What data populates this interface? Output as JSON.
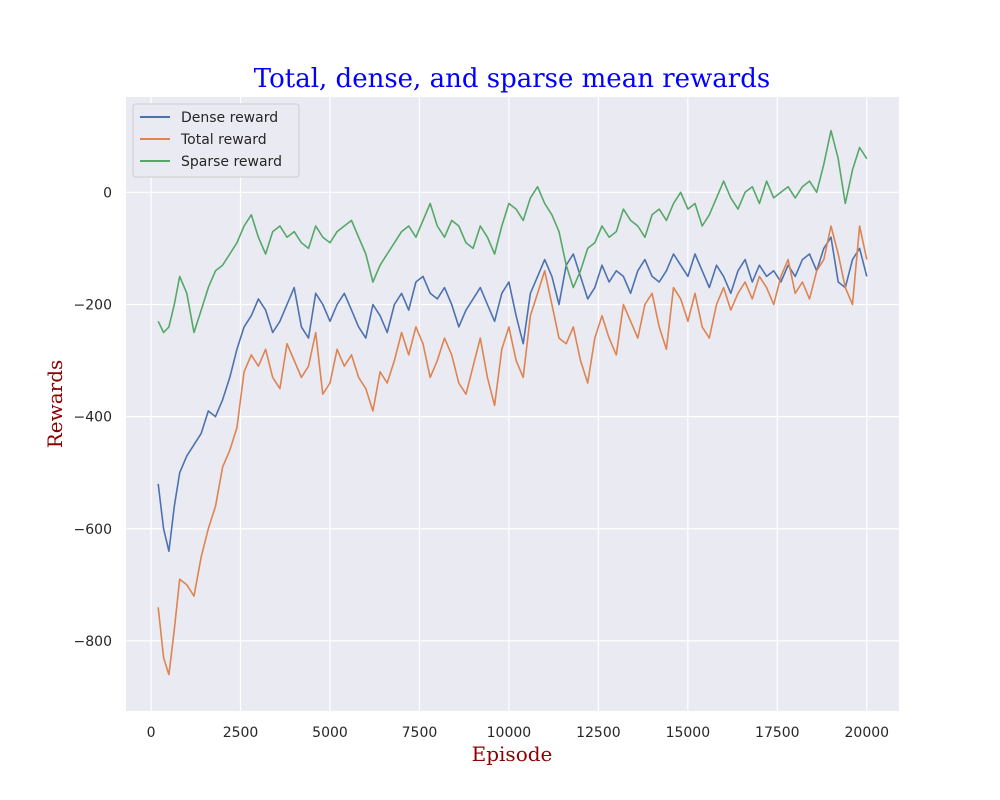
{
  "chart_data": {
    "type": "line",
    "title": "Total, dense, and sparse mean rewards",
    "xlabel": "Episode",
    "ylabel": "Rewards",
    "xlim": [
      -700,
      20900
    ],
    "ylim": [
      -925,
      170
    ],
    "xticks": [
      0,
      2500,
      5000,
      7500,
      10000,
      12500,
      15000,
      17500,
      20000
    ],
    "yticks": [
      -800,
      -600,
      -400,
      -200,
      0
    ],
    "xtick_labels": [
      "0",
      "2500",
      "5000",
      "7500",
      "10000",
      "12500",
      "15000",
      "17500",
      "20000"
    ],
    "ytick_labels": [
      "−800",
      "−600",
      "−400",
      "−200",
      "0"
    ],
    "grid": true,
    "legend_position": "upper-left",
    "series": [
      {
        "name": "Dense reward",
        "color": "#4c72b0",
        "x": [
          200,
          350,
          500,
          650,
          800,
          1000,
          1200,
          1400,
          1600,
          1800,
          2000,
          2200,
          2400,
          2600,
          2800,
          3000,
          3200,
          3400,
          3600,
          3800,
          4000,
          4200,
          4400,
          4600,
          4800,
          5000,
          5200,
          5400,
          5600,
          5800,
          6000,
          6200,
          6400,
          6600,
          6800,
          7000,
          7200,
          7400,
          7600,
          7800,
          8000,
          8200,
          8400,
          8600,
          8800,
          9000,
          9200,
          9400,
          9600,
          9800,
          10000,
          10200,
          10400,
          10600,
          10800,
          11000,
          11200,
          11400,
          11600,
          11800,
          12000,
          12200,
          12400,
          12600,
          12800,
          13000,
          13200,
          13400,
          13600,
          13800,
          14000,
          14200,
          14400,
          14600,
          14800,
          15000,
          15200,
          15400,
          15600,
          15800,
          16000,
          16200,
          16400,
          16600,
          16800,
          17000,
          17200,
          17400,
          17600,
          17800,
          18000,
          18200,
          18400,
          18600,
          18800,
          19000,
          19200,
          19400,
          19600,
          19800,
          20000
        ],
        "values": [
          -520,
          -600,
          -640,
          -560,
          -500,
          -470,
          -450,
          -430,
          -390,
          -400,
          -370,
          -330,
          -280,
          -240,
          -220,
          -190,
          -210,
          -250,
          -230,
          -200,
          -170,
          -240,
          -260,
          -180,
          -200,
          -230,
          -200,
          -180,
          -210,
          -240,
          -260,
          -200,
          -220,
          -250,
          -200,
          -180,
          -210,
          -160,
          -150,
          -180,
          -190,
          -170,
          -200,
          -240,
          -210,
          -190,
          -170,
          -200,
          -230,
          -180,
          -160,
          -220,
          -270,
          -180,
          -150,
          -120,
          -150,
          -200,
          -130,
          -110,
          -150,
          -190,
          -170,
          -130,
          -160,
          -140,
          -150,
          -180,
          -140,
          -120,
          -150,
          -160,
          -140,
          -110,
          -130,
          -150,
          -110,
          -140,
          -170,
          -130,
          -150,
          -180,
          -140,
          -120,
          -160,
          -130,
          -150,
          -140,
          -160,
          -130,
          -150,
          -120,
          -110,
          -140,
          -100,
          -80,
          -160,
          -170,
          -120,
          -100,
          -150
        ]
      },
      {
        "name": "Total reward",
        "color": "#dd8452",
        "x": [
          200,
          350,
          500,
          650,
          800,
          1000,
          1200,
          1400,
          1600,
          1800,
          2000,
          2200,
          2400,
          2600,
          2800,
          3000,
          3200,
          3400,
          3600,
          3800,
          4000,
          4200,
          4400,
          4600,
          4800,
          5000,
          5200,
          5400,
          5600,
          5800,
          6000,
          6200,
          6400,
          6600,
          6800,
          7000,
          7200,
          7400,
          7600,
          7800,
          8000,
          8200,
          8400,
          8600,
          8800,
          9000,
          9200,
          9400,
          9600,
          9800,
          10000,
          10200,
          10400,
          10600,
          10800,
          11000,
          11200,
          11400,
          11600,
          11800,
          12000,
          12200,
          12400,
          12600,
          12800,
          13000,
          13200,
          13400,
          13600,
          13800,
          14000,
          14200,
          14400,
          14600,
          14800,
          15000,
          15200,
          15400,
          15600,
          15800,
          16000,
          16200,
          16400,
          16600,
          16800,
          17000,
          17200,
          17400,
          17600,
          17800,
          18000,
          18200,
          18400,
          18600,
          18800,
          19000,
          19200,
          19400,
          19600,
          19800,
          20000
        ],
        "values": [
          -740,
          -830,
          -860,
          -780,
          -690,
          -700,
          -720,
          -650,
          -600,
          -560,
          -490,
          -460,
          -420,
          -320,
          -290,
          -310,
          -280,
          -330,
          -350,
          -270,
          -300,
          -330,
          -310,
          -250,
          -360,
          -340,
          -280,
          -310,
          -290,
          -330,
          -350,
          -390,
          -320,
          -340,
          -300,
          -250,
          -290,
          -240,
          -270,
          -330,
          -300,
          -260,
          -290,
          -340,
          -360,
          -310,
          -260,
          -330,
          -380,
          -280,
          -240,
          -300,
          -330,
          -220,
          -180,
          -140,
          -200,
          -260,
          -270,
          -240,
          -300,
          -340,
          -260,
          -220,
          -260,
          -290,
          -200,
          -230,
          -260,
          -200,
          -180,
          -240,
          -280,
          -170,
          -190,
          -230,
          -180,
          -240,
          -260,
          -200,
          -170,
          -210,
          -180,
          -160,
          -190,
          -150,
          -170,
          -200,
          -150,
          -120,
          -180,
          -160,
          -190,
          -140,
          -120,
          -60,
          -110,
          -170,
          -200,
          -60,
          -120
        ]
      },
      {
        "name": "Sparse reward",
        "color": "#55a868",
        "x": [
          200,
          350,
          500,
          650,
          800,
          1000,
          1200,
          1400,
          1600,
          1800,
          2000,
          2200,
          2400,
          2600,
          2800,
          3000,
          3200,
          3400,
          3600,
          3800,
          4000,
          4200,
          4400,
          4600,
          4800,
          5000,
          5200,
          5400,
          5600,
          5800,
          6000,
          6200,
          6400,
          6600,
          6800,
          7000,
          7200,
          7400,
          7600,
          7800,
          8000,
          8200,
          8400,
          8600,
          8800,
          9000,
          9200,
          9400,
          9600,
          9800,
          10000,
          10200,
          10400,
          10600,
          10800,
          11000,
          11200,
          11400,
          11600,
          11800,
          12000,
          12200,
          12400,
          12600,
          12800,
          13000,
          13200,
          13400,
          13600,
          13800,
          14000,
          14200,
          14400,
          14600,
          14800,
          15000,
          15200,
          15400,
          15600,
          15800,
          16000,
          16200,
          16400,
          16600,
          16800,
          17000,
          17200,
          17400,
          17600,
          17800,
          18000,
          18200,
          18400,
          18600,
          18800,
          19000,
          19200,
          19400,
          19600,
          19800,
          20000
        ],
        "values": [
          -230,
          -250,
          -240,
          -200,
          -150,
          -180,
          -250,
          -210,
          -170,
          -140,
          -130,
          -110,
          -90,
          -60,
          -40,
          -80,
          -110,
          -70,
          -60,
          -80,
          -70,
          -90,
          -100,
          -60,
          -80,
          -90,
          -70,
          -60,
          -50,
          -80,
          -110,
          -160,
          -130,
          -110,
          -90,
          -70,
          -60,
          -80,
          -50,
          -20,
          -60,
          -80,
          -50,
          -60,
          -90,
          -100,
          -60,
          -80,
          -110,
          -60,
          -20,
          -30,
          -50,
          -10,
          10,
          -20,
          -40,
          -70,
          -130,
          -170,
          -140,
          -100,
          -90,
          -60,
          -80,
          -70,
          -30,
          -50,
          -60,
          -80,
          -40,
          -30,
          -50,
          -20,
          0,
          -30,
          -20,
          -60,
          -40,
          -10,
          20,
          -10,
          -30,
          0,
          10,
          -20,
          20,
          -10,
          0,
          10,
          -10,
          10,
          20,
          0,
          50,
          110,
          60,
          -20,
          40,
          80,
          60
        ]
      }
    ]
  }
}
